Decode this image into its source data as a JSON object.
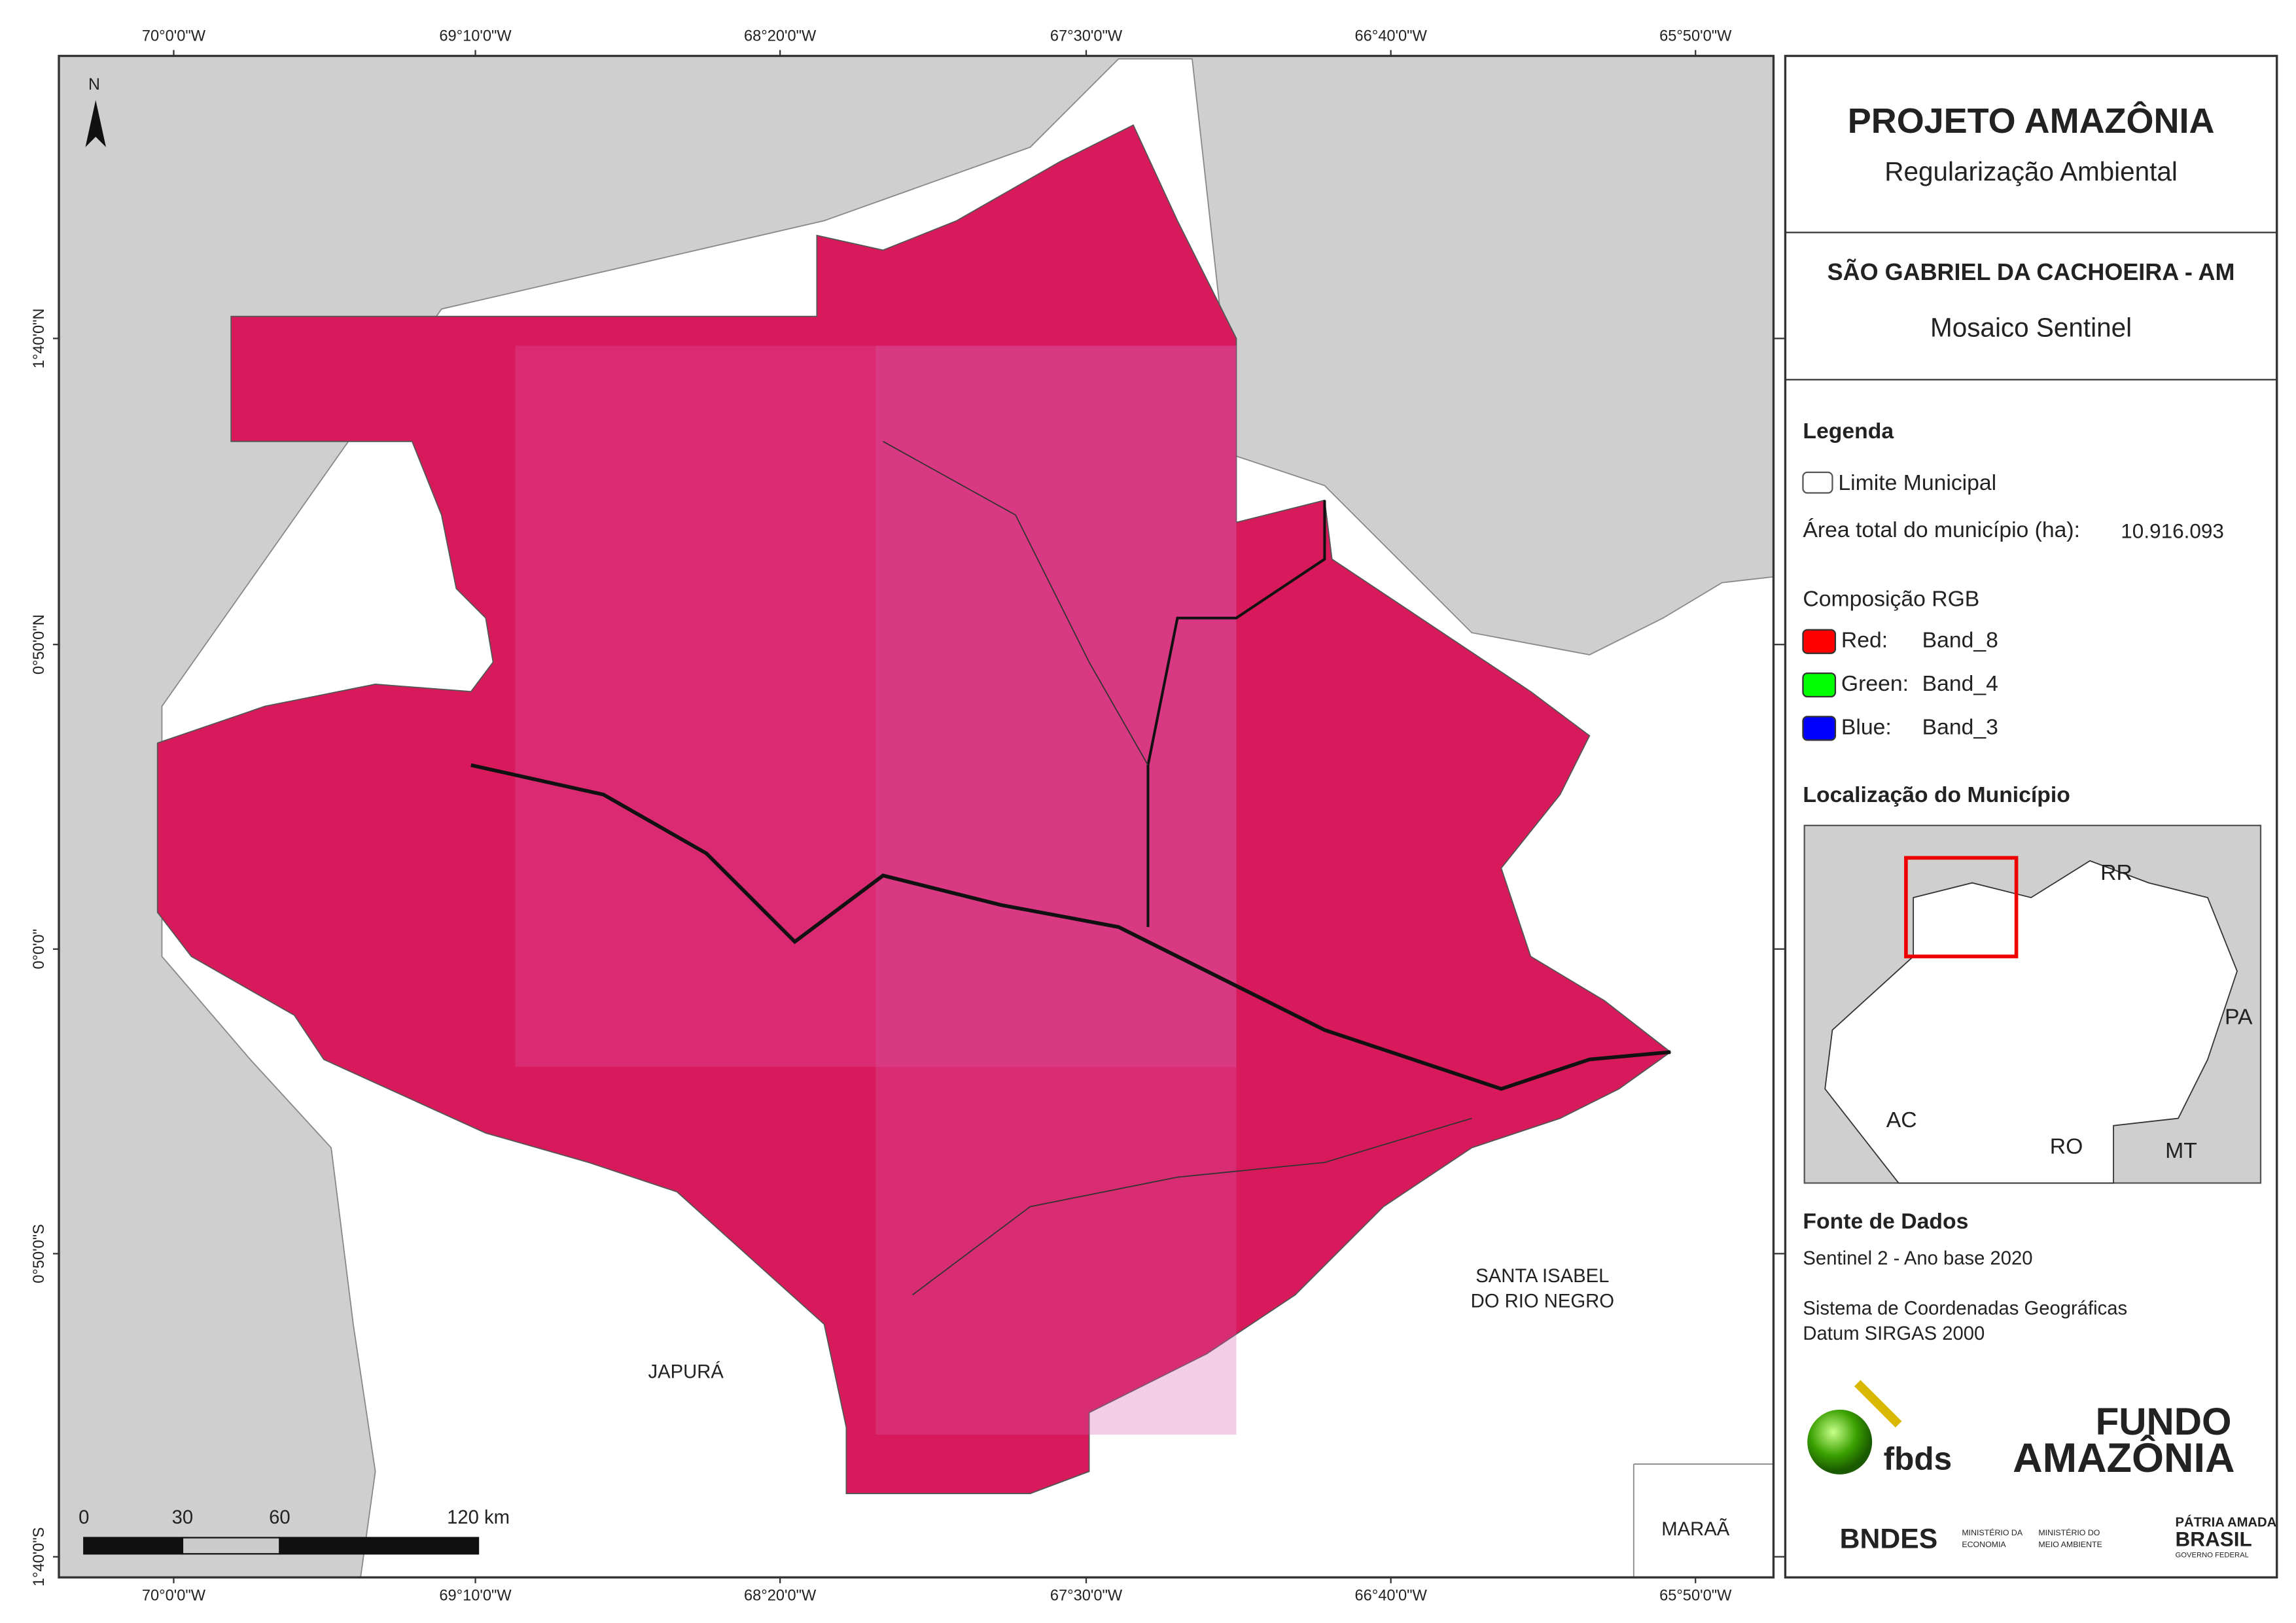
{
  "map": {
    "graticule": {
      "lon": [
        "70°0'0\"W",
        "69°10'0\"W",
        "68°20'0\"W",
        "67°30'0\"W",
        "66°40'0\"W",
        "65°50'0\"W"
      ],
      "lat": [
        "1°40'0\"N",
        "0°50'0\"N",
        "0°0'0\"",
        "0°50'0\"S",
        "1°40'0\"S"
      ]
    },
    "north": "N",
    "scale_bar": [
      "0",
      "30",
      "60",
      "120 km"
    ],
    "places": {
      "japura": "JAPURÁ",
      "santa_isabel": [
        "SANTA ISABEL",
        "DO RIO NEGRO"
      ],
      "maraa": "MARAÃ"
    }
  },
  "panel": {
    "title": "PROJETO AMAZÔNIA",
    "subtitle": "Regularização Ambiental",
    "municipality": "SÃO GABRIEL DA CACHOEIRA - AM",
    "product": "Mosaico Sentinel",
    "legend": {
      "title": "Legenda",
      "boundary": "Limite Municipal",
      "area_label": "Área total do município (ha):",
      "area_value": "10.916.093",
      "rgb_title": "Composição RGB",
      "bands": [
        {
          "channel": "Red:",
          "band": "Band_8",
          "color": "#ff0000"
        },
        {
          "channel": "Green:",
          "band": "Band_4",
          "color": "#00ff00"
        },
        {
          "channel": "Blue:",
          "band": "Band_3",
          "color": "#0000ff"
        }
      ]
    },
    "location": {
      "title": "Localização do Município",
      "states": [
        "RR",
        "PA",
        "AC",
        "RO",
        "MT"
      ]
    },
    "sources": {
      "title": "Fonte de Dados",
      "lines": [
        "Sentinel 2 - Ano base 2020",
        "Sistema de Coordenadas Geográficas",
        "Datum SIRGAS 2000"
      ]
    },
    "logos": {
      "fbds": "fbds",
      "fundo": [
        "FUNDO",
        "AMAZÔNIA"
      ],
      "bndes": "BNDES",
      "ministries": [
        [
          "MINISTÉRIO DA",
          "ECONOMIA"
        ],
        [
          "MINISTÉRIO DO",
          "MEIO AMBIENTE"
        ]
      ],
      "brasil": [
        "PÁTRIA AMADA",
        "BRASIL",
        "GOVERNO FEDERAL"
      ]
    }
  }
}
